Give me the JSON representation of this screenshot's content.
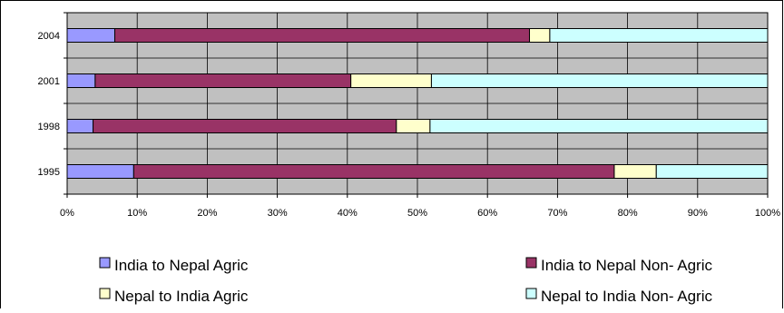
{
  "chart_data": {
    "type": "bar",
    "orientation": "horizontal",
    "stacked": "percent",
    "categories": [
      "2004",
      "2001",
      "1998",
      "1995"
    ],
    "series": [
      {
        "name": "India to Nepal Agric",
        "color": "#9999ff",
        "values": [
          6.8,
          4.0,
          3.7,
          9.5
        ]
      },
      {
        "name": "India to Nepal Non-Agric",
        "color": "#993366",
        "values": [
          59.2,
          36.5,
          43.3,
          68.6
        ]
      },
      {
        "name": "Nepal to India Agric",
        "color": "#ffffcc",
        "values": [
          2.9,
          11.5,
          4.8,
          6.0
        ]
      },
      {
        "name": "Nepal to India Non-Agric",
        "color": "#ccffff",
        "values": [
          31.1,
          48.0,
          48.2,
          15.9
        ]
      }
    ],
    "x_ticks": [
      "0%",
      "10%",
      "20%",
      "30%",
      "40%",
      "50%",
      "60%",
      "70%",
      "80%",
      "90%",
      "100%"
    ],
    "xlim": [
      0,
      100
    ],
    "grid": true,
    "plot_background": "#c0c0c0",
    "legend_position": "bottom",
    "legend_labels": [
      "India to Nepal Agric",
      "India to Nepal Non- Agric",
      "Nepal to India Agric",
      "Nepal to India Non- Agric"
    ]
  }
}
